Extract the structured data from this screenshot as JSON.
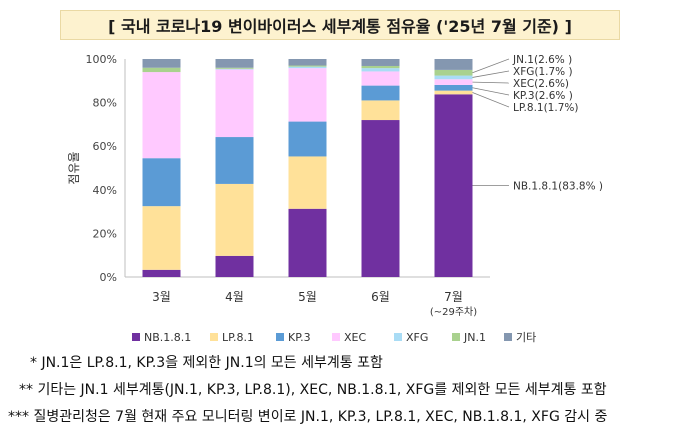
{
  "title": "[ 국내 코로나19 변이바이러스 세부계통 점유율 ('25년 7월 기준) ]",
  "chart_data": {
    "type": "bar",
    "stacked": true,
    "ylabel": "점유율",
    "ylim": [
      0,
      100
    ],
    "y_ticks": [
      "0%",
      "20%",
      "40%",
      "60%",
      "80%",
      "100%"
    ],
    "grid": false,
    "legend_position": "bottom",
    "categories": [
      "3월",
      "4월",
      "5월",
      "6월",
      "7월"
    ],
    "category_sublabels": [
      "",
      "",
      "",
      "",
      "(~29주차)"
    ],
    "series": [
      {
        "name": "NB.1.8.1",
        "color": "#7030a0",
        "values": [
          3.3,
          9.7,
          31.3,
          72.0,
          83.8
        ]
      },
      {
        "name": "LP.8.1",
        "color": "#ffe199",
        "values": [
          29.2,
          33.0,
          24.0,
          9.0,
          1.7
        ]
      },
      {
        "name": "KP.3",
        "color": "#5b9bd5",
        "values": [
          22.0,
          21.5,
          16.0,
          6.8,
          2.6
        ]
      },
      {
        "name": "XEC",
        "color": "#ffc9ff",
        "values": [
          39.5,
          31.0,
          24.5,
          6.5,
          2.6
        ]
      },
      {
        "name": "XFG",
        "color": "#a9dcf5",
        "values": [
          0.0,
          0.3,
          0.7,
          1.5,
          1.7
        ]
      },
      {
        "name": "JN.1",
        "color": "#a9d18e",
        "values": [
          2.0,
          0.5,
          0.5,
          1.0,
          2.6
        ]
      },
      {
        "name": "기타",
        "color": "#8497b0",
        "values": [
          4.0,
          4.0,
          3.0,
          3.2,
          5.0
        ]
      }
    ],
    "annotations": [
      {
        "text": "JN.1(2.6% )",
        "series": "JN.1"
      },
      {
        "text": "XFG(1.7% )",
        "series": "XFG"
      },
      {
        "text": "XEC(2.6%)",
        "series": "XEC"
      },
      {
        "text": "KP.3(2.6% )",
        "series": "KP.3"
      },
      {
        "text": "LP.8.1(1.7%)",
        "series": "LP.8.1"
      },
      {
        "text": "NB.1.8.1(83.8% )",
        "series": "NB.1.8.1"
      }
    ]
  },
  "notes": [
    "* JN.1은 LP.8.1, KP.3을 제외한 JN.1의 모든 세부계통 포함",
    "** 기타는 JN.1 세부계통(JN.1, KP.3, LP.8.1), XEC, NB.1.8.1, XFG를 제외한 모든 세부계통 포함",
    "*** 질병관리청은 7월 현재 주요 모니터링 변이로 JN.1, KP.3, LP.8.1, XEC, NB.1.8.1, XFG 감시 중"
  ]
}
